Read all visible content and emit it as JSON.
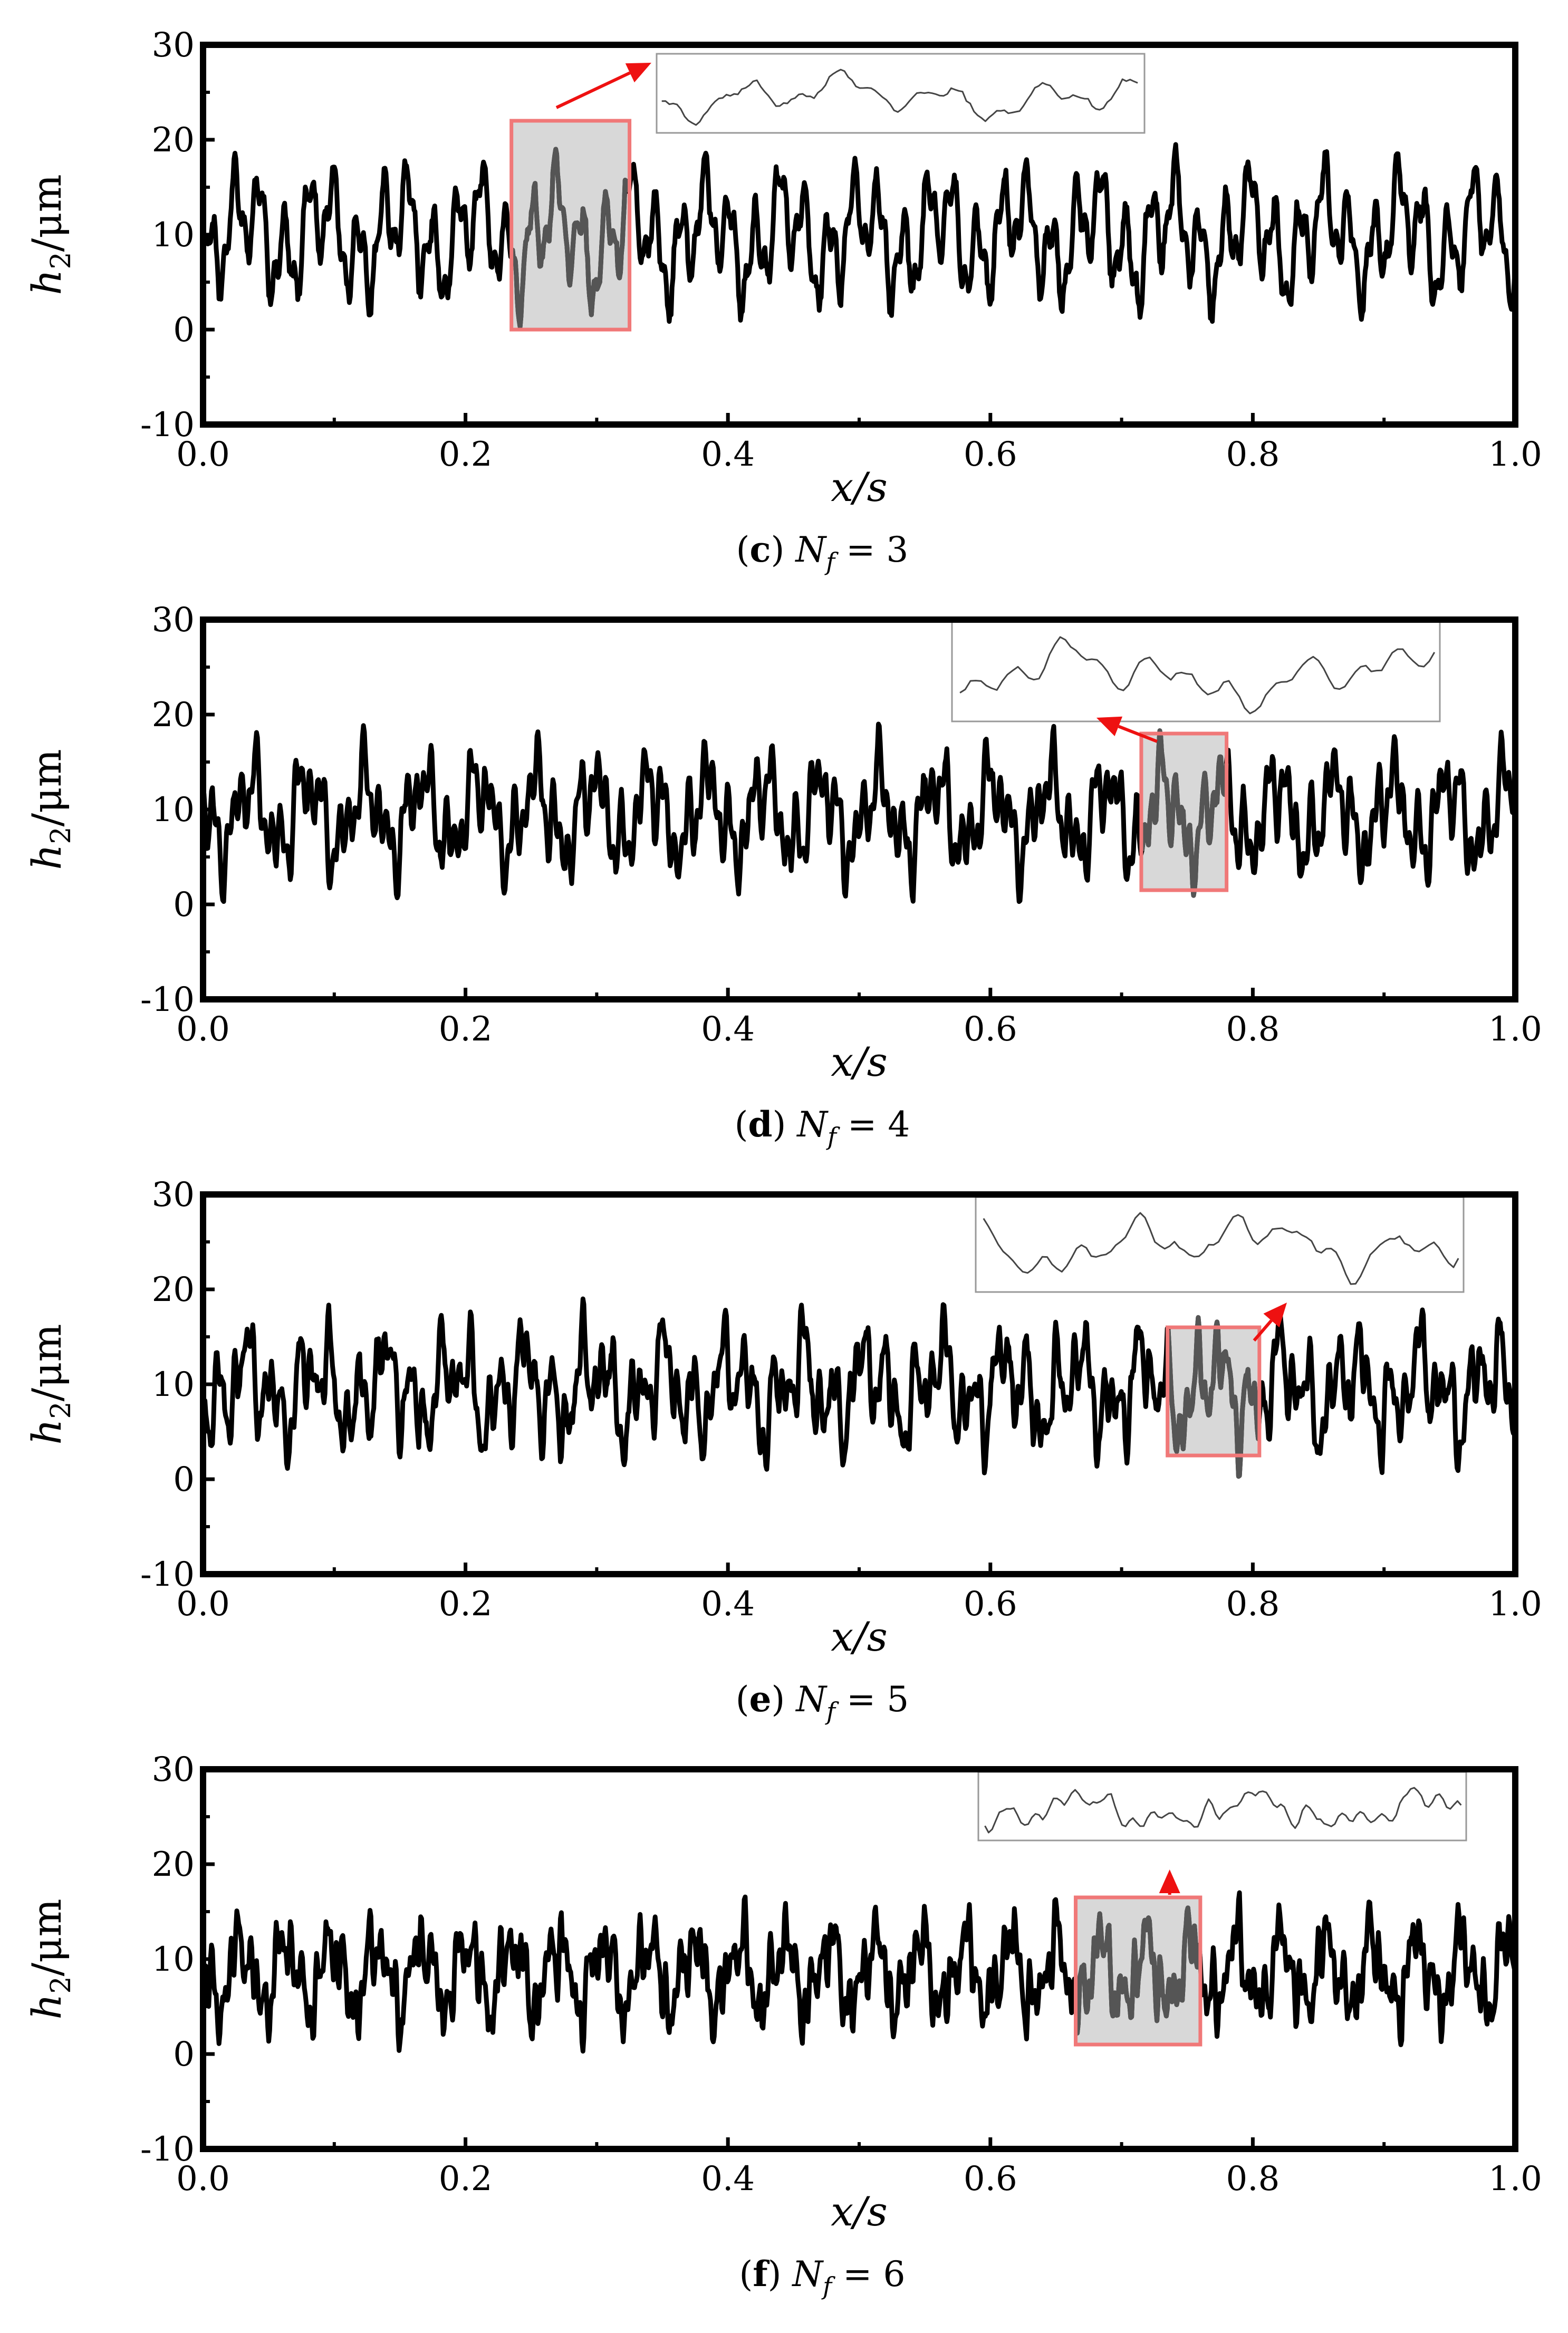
{
  "figure": {
    "panels": [
      {
        "caption": {
          "letter": "c",
          "symbol": "N",
          "subscript": "f",
          "equals": "= 3"
        },
        "chart_data": {
          "type": "line",
          "xlabel": "x/s",
          "ylabel_main": "h",
          "ylabel_sub": "2",
          "ylabel_unit": "/μm",
          "xlim": [
            0.0,
            1.0
          ],
          "ylim": [
            -10,
            30
          ],
          "xticks": [
            "0.0",
            "0.2",
            "0.4",
            "0.6",
            "0.8",
            "1.0"
          ],
          "yticks": [
            "-10",
            "0",
            "10",
            "20",
            "30"
          ],
          "series": [
            {
              "color": "#000000",
              "mean": 10,
              "amplitude": 9.5,
              "min": 0.3,
              "max": 19.5,
              "n_frequencies": 3
            }
          ],
          "zoom_box": {
            "x_range": [
              0.235,
              0.325
            ],
            "y_range": [
              0,
              22
            ]
          },
          "inset": {
            "direction": "up-right"
          },
          "grid": false
        }
      },
      {
        "caption": {
          "letter": "d",
          "symbol": "N",
          "subscript": "f",
          "equals": "= 4"
        },
        "chart_data": {
          "type": "line",
          "xlabel": "x/s",
          "ylabel_main": "h",
          "ylabel_sub": "2",
          "ylabel_unit": "/μm",
          "xlim": [
            0.0,
            1.0
          ],
          "ylim": [
            -10,
            30
          ],
          "xticks": [
            "0.0",
            "0.2",
            "0.4",
            "0.6",
            "0.8",
            "1.0"
          ],
          "yticks": [
            "-10",
            "0",
            "10",
            "20",
            "30"
          ],
          "series": [
            {
              "color": "#000000",
              "mean": 9.5,
              "amplitude": 9.5,
              "min": 0.3,
              "max": 19,
              "n_frequencies": 4
            }
          ],
          "zoom_box": {
            "x_range": [
              0.715,
              0.78
            ],
            "y_range": [
              1.5,
              18
            ]
          },
          "inset": {
            "direction": "up-left"
          },
          "grid": false
        }
      },
      {
        "caption": {
          "letter": "e",
          "symbol": "N",
          "subscript": "f",
          "equals": "= 5"
        },
        "chart_data": {
          "type": "line",
          "xlabel": "x/s",
          "ylabel_main": "h",
          "ylabel_sub": "2",
          "ylabel_unit": "/μm",
          "xlim": [
            0.0,
            1.0
          ],
          "ylim": [
            -10,
            30
          ],
          "xticks": [
            "0.0",
            "0.2",
            "0.4",
            "0.6",
            "0.8",
            "1.0"
          ],
          "yticks": [
            "-10",
            "0",
            "10",
            "20",
            "30"
          ],
          "series": [
            {
              "color": "#000000",
              "mean": 10,
              "amplitude": 9,
              "min": 0.3,
              "max": 19,
              "n_frequencies": 5
            }
          ],
          "zoom_box": {
            "x_range": [
              0.735,
              0.805
            ],
            "y_range": [
              2.5,
              16
            ]
          },
          "inset": {
            "direction": "up-right"
          },
          "grid": false
        }
      },
      {
        "caption": {
          "letter": "f",
          "symbol": "N",
          "subscript": "f",
          "equals": "= 6"
        },
        "chart_data": {
          "type": "line",
          "xlabel": "x/s",
          "ylabel_main": "h",
          "ylabel_sub": "2",
          "ylabel_unit": "/μm",
          "xlim": [
            0.0,
            1.0
          ],
          "ylim": [
            -10,
            30
          ],
          "xticks": [
            "0.0",
            "0.2",
            "0.4",
            "0.6",
            "0.8",
            "1.0"
          ],
          "yticks": [
            "-10",
            "0",
            "10",
            "20",
            "30"
          ],
          "series": [
            {
              "color": "#000000",
              "mean": 9.5,
              "amplitude": 8,
              "min": 0.3,
              "max": 17,
              "n_frequencies": 6
            }
          ],
          "zoom_box": {
            "x_range": [
              0.665,
              0.76
            ],
            "y_range": [
              1,
              16.5
            ]
          },
          "inset": {
            "direction": "up"
          },
          "grid": false
        }
      }
    ]
  }
}
